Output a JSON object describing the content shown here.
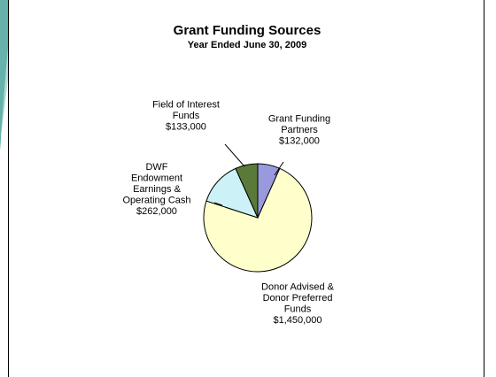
{
  "chart_data": {
    "type": "pie",
    "title": "Grant Funding Sources",
    "subtitle": "Year Ended June 30, 2009",
    "slices": [
      {
        "label": [
          "Grant Funding",
          "Partners",
          "$132,000"
        ],
        "value": 132000,
        "color": "#9999dd"
      },
      {
        "label": [
          "Donor Advised &",
          "Donor Preferred",
          "Funds",
          "$1,450,000"
        ],
        "value": 1450000,
        "color": "#ffffcc"
      },
      {
        "label": [
          "DWF",
          "Endowment",
          "Earnings &",
          "Operating Cash",
          "$262,000"
        ],
        "value": 262000,
        "color": "#ccf2f7"
      },
      {
        "label": [
          "Field of Interest",
          "Funds",
          "$133,000"
        ],
        "value": 133000,
        "color": "#5a7a3a"
      }
    ],
    "legend": "none"
  }
}
